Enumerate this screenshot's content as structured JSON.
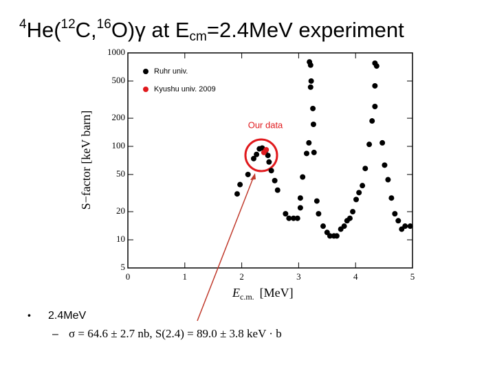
{
  "chart_data": {
    "type": "scatter",
    "title": [
      "4",
      "He(",
      "12",
      "C,",
      "16",
      "O)γ at E",
      "cm",
      "=2.4MeV experiment"
    ],
    "xlabel": [
      "E",
      "c.m.",
      "[MeV]"
    ],
    "ylabel": "S−factor  [keV barn]",
    "annotation": "Our data",
    "xlim": [
      0,
      5
    ],
    "ylim": [
      5,
      1000
    ],
    "xticks": [
      0,
      1,
      2,
      3,
      4,
      5
    ],
    "yticks": [
      5,
      10,
      20,
      50,
      100,
      200,
      500,
      1000
    ],
    "ylog": true,
    "legend": "top-left",
    "series": [
      {
        "name": "Ruhr univ.",
        "color": "#000000",
        "x": [
          1.92,
          1.97,
          2.11,
          2.21,
          2.26,
          2.31,
          2.36,
          2.42,
          2.46,
          2.48,
          2.52,
          2.58,
          2.63,
          2.77,
          2.83,
          2.91,
          2.98,
          3.03,
          3.03,
          3.07,
          3.14,
          3.18,
          3.19,
          3.21,
          3.22,
          3.21,
          3.25,
          3.26,
          3.27,
          3.32,
          3.35,
          3.43,
          3.5,
          3.55,
          3.62,
          3.67,
          3.74,
          3.8,
          3.85,
          3.9,
          3.95,
          4.01,
          4.06,
          4.12,
          4.17,
          4.24,
          4.29,
          4.34,
          4.34,
          4.37,
          4.34,
          4.47,
          4.51,
          4.57,
          4.63,
          4.69,
          4.75,
          4.81,
          4.87,
          4.96
        ],
        "values": [
          31,
          39,
          50,
          74,
          82,
          94,
          96,
          90,
          80,
          68,
          55,
          43,
          34,
          19,
          17,
          17,
          17,
          22,
          28,
          47,
          84,
          109,
          800,
          740,
          500,
          430,
          254,
          172,
          86,
          26,
          19,
          14,
          12,
          11,
          11,
          11,
          13,
          14,
          16,
          17,
          20,
          27,
          32,
          38,
          58,
          105,
          187,
          267,
          444,
          724,
          776,
          109,
          63,
          44,
          28,
          19,
          16,
          13,
          14,
          14
        ]
      },
      {
        "name": "Kyushu univ. 2009",
        "color": "#e0191d",
        "x": [
          2.39,
          2.43
        ],
        "values": [
          86,
          92
        ]
      }
    ]
  },
  "bullets": [
    {
      "marker": "•",
      "text": "2.4MeV",
      "sub": {
        "marker": "–",
        "text": "σ = 64.6 ± 2.7 nb,   S(2.4) = 89.0 ± 3.8 keV · b"
      }
    }
  ]
}
